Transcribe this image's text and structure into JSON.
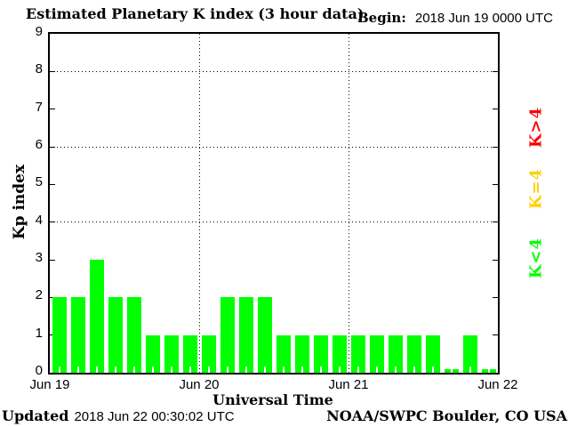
{
  "title": "Estimated Planetary K index (3 hour data)",
  "begin": {
    "label": "Begin:",
    "value": "2018 Jun 19 0000 UTC"
  },
  "footer": {
    "updated_label": "Updated",
    "updated_value": "2018 Jun 22 00:30:02 UTC",
    "source": "NOAA/SWPC Boulder, CO USA"
  },
  "chart_data": {
    "type": "bar",
    "title": "Estimated Planetary K index (3 hour data)",
    "xlabel": "Universal Time",
    "ylabel": "Kp index",
    "ylim": [
      0,
      9
    ],
    "yticks": [
      0,
      1,
      2,
      3,
      4,
      5,
      6,
      7,
      8,
      9
    ],
    "x_tick_labels": [
      "Jun 19",
      "Jun 20",
      "Jun 21",
      "Jun 22"
    ],
    "begin_utc": "2018 Jun 19 0000 UTC",
    "bin_hours": 3,
    "bins_per_day": 8,
    "values": [
      2,
      2,
      3,
      2,
      2,
      1,
      1,
      1,
      1,
      2,
      2,
      2,
      1,
      1,
      1,
      1,
      1,
      1,
      1,
      1,
      1,
      0,
      1,
      0
    ],
    "gridlines_y": [
      4,
      6,
      8
    ],
    "day_boundary_labels": [
      "Jun 20",
      "Jun 21"
    ],
    "bar_color": "#00ff00",
    "grid_style": "dotted",
    "legend_position": "right-margin-rotated",
    "legend": [
      {
        "label": "K<4",
        "color": "#00ff00"
      },
      {
        "label": "K=4",
        "color": "#ffd000"
      },
      {
        "label": "K>4",
        "color": "#ff0000"
      }
    ]
  }
}
